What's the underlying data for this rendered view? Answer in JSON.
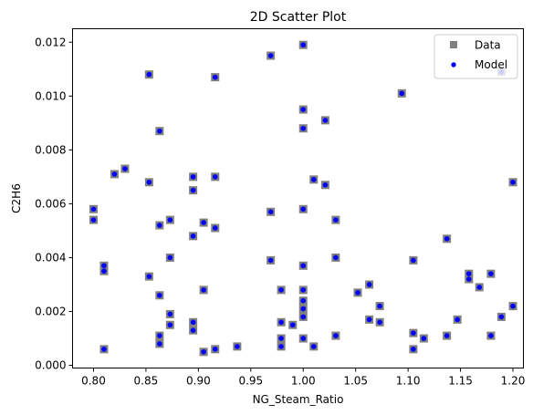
{
  "chart_data": {
    "type": "scatter",
    "title": "2D Scatter Plot",
    "xlabel": "NG_Steam_Ratio",
    "ylabel": "C2H6",
    "xlim": [
      0.78,
      1.21
    ],
    "ylim": [
      -0.0001,
      0.0125
    ],
    "x_ticks": [
      "0.80",
      "0.85",
      "0.90",
      "0.95",
      "1.00",
      "1.05",
      "1.10",
      "1.15",
      "1.20"
    ],
    "y_ticks": [
      "0.000",
      "0.002",
      "0.004",
      "0.006",
      "0.008",
      "0.010",
      "0.012"
    ],
    "grid": false,
    "legend_position": "top-right",
    "series": [
      {
        "name": "Data",
        "marker": "square",
        "color": "#808080",
        "points": [
          [
            0.8,
            0.0058
          ],
          [
            0.8,
            0.0054
          ],
          [
            0.81,
            0.0037
          ],
          [
            0.81,
            0.0035
          ],
          [
            0.81,
            0.0006
          ],
          [
            0.82,
            0.0071
          ],
          [
            0.83,
            0.0073
          ],
          [
            0.853,
            0.0108
          ],
          [
            0.853,
            0.0068
          ],
          [
            0.853,
            0.0033
          ],
          [
            0.863,
            0.0087
          ],
          [
            0.863,
            0.0052
          ],
          [
            0.863,
            0.0026
          ],
          [
            0.863,
            0.0011
          ],
          [
            0.863,
            0.0008
          ],
          [
            0.873,
            0.0054
          ],
          [
            0.873,
            0.004
          ],
          [
            0.873,
            0.0019
          ],
          [
            0.873,
            0.0015
          ],
          [
            0.895,
            0.007
          ],
          [
            0.895,
            0.0065
          ],
          [
            0.895,
            0.0048
          ],
          [
            0.895,
            0.0016
          ],
          [
            0.895,
            0.0013
          ],
          [
            0.905,
            0.0053
          ],
          [
            0.905,
            0.0028
          ],
          [
            0.905,
            0.0005
          ],
          [
            0.916,
            0.0107
          ],
          [
            0.916,
            0.007
          ],
          [
            0.916,
            0.0051
          ],
          [
            0.916,
            0.0006
          ],
          [
            0.937,
            0.0007
          ],
          [
            0.969,
            0.0115
          ],
          [
            0.969,
            0.0057
          ],
          [
            0.969,
            0.0039
          ],
          [
            0.979,
            0.0028
          ],
          [
            0.979,
            0.0016
          ],
          [
            0.979,
            0.001
          ],
          [
            0.979,
            0.0007
          ],
          [
            0.99,
            0.0015
          ],
          [
            1.0,
            0.0119
          ],
          [
            1.0,
            0.0095
          ],
          [
            1.0,
            0.0088
          ],
          [
            1.0,
            0.0058
          ],
          [
            1.0,
            0.0037
          ],
          [
            1.0,
            0.0028
          ],
          [
            1.0,
            0.0024
          ],
          [
            1.0,
            0.0021
          ],
          [
            1.0,
            0.0018
          ],
          [
            1.0,
            0.001
          ],
          [
            1.01,
            0.0069
          ],
          [
            1.01,
            0.0007
          ],
          [
            1.021,
            0.0091
          ],
          [
            1.021,
            0.0067
          ],
          [
            1.031,
            0.0054
          ],
          [
            1.031,
            0.004
          ],
          [
            1.031,
            0.0011
          ],
          [
            1.052,
            0.0027
          ],
          [
            1.063,
            0.003
          ],
          [
            1.063,
            0.0017
          ],
          [
            1.073,
            0.0022
          ],
          [
            1.073,
            0.0016
          ],
          [
            1.094,
            0.0101
          ],
          [
            1.105,
            0.0039
          ],
          [
            1.105,
            0.0012
          ],
          [
            1.105,
            0.0006
          ],
          [
            1.115,
            0.001
          ],
          [
            1.137,
            0.0047
          ],
          [
            1.137,
            0.0011
          ],
          [
            1.147,
            0.0017
          ],
          [
            1.158,
            0.0034
          ],
          [
            1.158,
            0.0032
          ],
          [
            1.168,
            0.0029
          ],
          [
            1.179,
            0.0034
          ],
          [
            1.179,
            0.0011
          ],
          [
            1.189,
            0.0109
          ],
          [
            1.189,
            0.0018
          ],
          [
            1.2,
            0.0068
          ],
          [
            1.2,
            0.0022
          ]
        ]
      },
      {
        "name": "Model",
        "marker": "circle",
        "color": "#0000ff",
        "same_points_as": "Data"
      }
    ]
  }
}
